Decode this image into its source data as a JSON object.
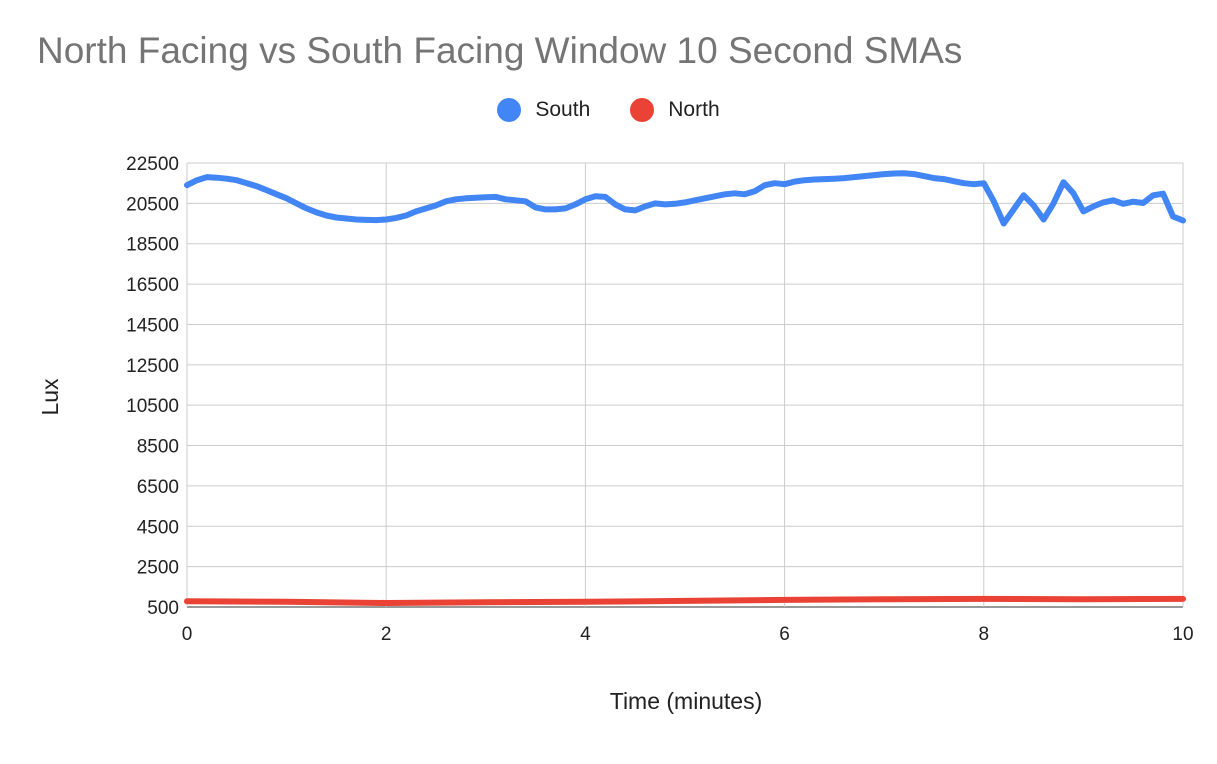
{
  "chart_data": {
    "type": "line",
    "title": "North Facing vs South Facing Window 10 Second SMAs",
    "xlabel": "Time (minutes)",
    "ylabel": "Lux",
    "xlim": [
      0,
      10
    ],
    "ylim": [
      500,
      22500
    ],
    "x_ticks": [
      0,
      2,
      4,
      6,
      8,
      10
    ],
    "y_ticks": [
      500,
      2500,
      4500,
      6500,
      8500,
      10500,
      12500,
      14500,
      16500,
      18500,
      20500,
      22500
    ],
    "grid": true,
    "legend_position": "top",
    "series": [
      {
        "name": "South",
        "color": "#4285f4",
        "x": [
          0,
          0.1,
          0.2,
          0.3,
          0.4,
          0.5,
          0.6,
          0.7,
          0.8,
          0.9,
          1.0,
          1.1,
          1.2,
          1.3,
          1.4,
          1.5,
          1.6,
          1.7,
          1.8,
          1.9,
          2.0,
          2.1,
          2.2,
          2.3,
          2.4,
          2.5,
          2.6,
          2.7,
          2.8,
          2.9,
          3.0,
          3.1,
          3.2,
          3.3,
          3.4,
          3.5,
          3.6,
          3.7,
          3.8,
          3.9,
          4.0,
          4.1,
          4.2,
          4.3,
          4.4,
          4.5,
          4.6,
          4.7,
          4.8,
          4.9,
          5.0,
          5.1,
          5.2,
          5.3,
          5.4,
          5.5,
          5.6,
          5.7,
          5.8,
          5.9,
          6.0,
          6.1,
          6.2,
          6.3,
          6.4,
          6.5,
          6.6,
          6.7,
          6.8,
          6.9,
          7.0,
          7.1,
          7.2,
          7.3,
          7.4,
          7.5,
          7.6,
          7.7,
          7.8,
          7.9,
          8.0,
          8.1,
          8.2,
          8.3,
          8.4,
          8.5,
          8.6,
          8.7,
          8.8,
          8.9,
          9.0,
          9.1,
          9.2,
          9.3,
          9.4,
          9.5,
          9.6,
          9.7,
          9.8,
          9.9,
          10.0
        ],
        "values": [
          21400,
          21650,
          21800,
          21770,
          21720,
          21650,
          21500,
          21350,
          21150,
          20950,
          20750,
          20500,
          20250,
          20050,
          19900,
          19800,
          19750,
          19700,
          19680,
          19670,
          19700,
          19780,
          19900,
          20100,
          20250,
          20400,
          20600,
          20700,
          20750,
          20780,
          20800,
          20820,
          20700,
          20650,
          20600,
          20300,
          20200,
          20200,
          20250,
          20450,
          20700,
          20850,
          20820,
          20450,
          20200,
          20150,
          20350,
          20500,
          20450,
          20480,
          20550,
          20650,
          20750,
          20850,
          20950,
          21000,
          20950,
          21100,
          21400,
          21500,
          21450,
          21580,
          21650,
          21680,
          21700,
          21720,
          21750,
          21800,
          21850,
          21900,
          21950,
          21980,
          21990,
          21950,
          21850,
          21750,
          21700,
          21600,
          21500,
          21450,
          21500,
          20600,
          19500,
          20200,
          20900,
          20400,
          19700,
          20500,
          21550,
          21000,
          20100,
          20350,
          20550,
          20650,
          20480,
          20580,
          20520,
          20900,
          20980,
          19850,
          19650
        ]
      },
      {
        "name": "North",
        "color": "#ea4335",
        "x": [
          0,
          1,
          2,
          3,
          4,
          5,
          6,
          7,
          8,
          9,
          10
        ],
        "values": [
          780,
          760,
          700,
          740,
          760,
          800,
          850,
          880,
          900,
          880,
          900
        ]
      }
    ]
  }
}
